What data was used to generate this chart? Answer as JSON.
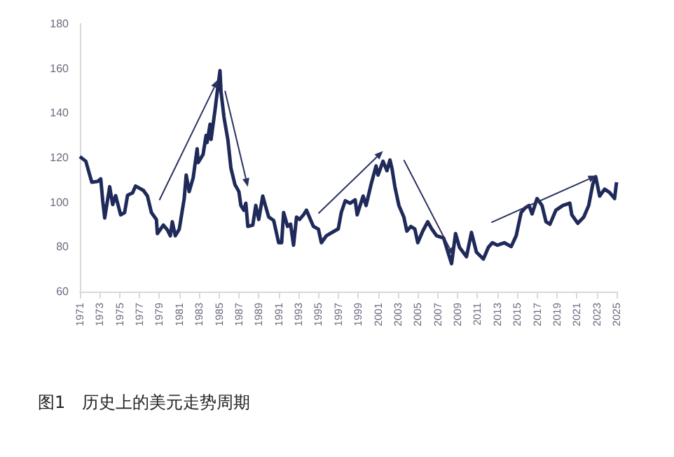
{
  "chart_data": {
    "type": "line",
    "title": "图1　历史上的美元走势周期",
    "x": [
      1971.0,
      1971.6,
      1972.2,
      1972.8,
      1973.1,
      1973.3,
      1973.5,
      1974.0,
      1974.3,
      1974.6,
      1975.1,
      1975.5,
      1975.8,
      1976.3,
      1976.6,
      1977.4,
      1977.8,
      1978.2,
      1978.7,
      1978.8,
      1979.4,
      1979.8,
      1980.1,
      1980.3,
      1980.6,
      1981.0,
      1981.5,
      1981.7,
      1982.0,
      1982.4,
      1982.8,
      1982.9,
      1983.4,
      1983.7,
      1983.8,
      1984.1,
      1984.2,
      1984.6,
      1984.8,
      1985.1,
      1985.2,
      1985.5,
      1985.9,
      1986.2,
      1986.6,
      1987.0,
      1987.2,
      1987.5,
      1987.7,
      1987.9,
      1988.4,
      1988.7,
      1989.0,
      1989.4,
      1989.6,
      1990.0,
      1990.5,
      1991.0,
      1991.3,
      1991.5,
      1991.9,
      1992.2,
      1992.5,
      1992.8,
      1993.1,
      1993.5,
      1993.8,
      1994.2,
      1994.5,
      1995.0,
      1995.3,
      1995.8,
      1996.6,
      1997.0,
      1997.3,
      1997.7,
      1998.2,
      1998.7,
      1998.9,
      1999.5,
      1999.8,
      2000.3,
      2000.8,
      2001.0,
      2001.5,
      2001.9,
      2002.2,
      2002.4,
      2002.7,
      2003.1,
      2003.6,
      2003.9,
      2004.3,
      2004.7,
      2005.0,
      2005.5,
      2006.0,
      2006.4,
      2006.9,
      2007.6,
      2008.1,
      2008.4,
      2008.8,
      2009.2,
      2009.9,
      2010.4,
      2010.9,
      2011.6,
      2012.1,
      2012.5,
      2013.0,
      2013.7,
      2014.4,
      2014.9,
      2015.4,
      2015.8,
      2016.2,
      2016.5,
      2017.0,
      2017.5,
      2017.9,
      2018.3,
      2018.9,
      2019.6,
      2020.3,
      2020.5,
      2021.1,
      2021.7,
      2022.2,
      2022.6,
      2022.9,
      2023.3,
      2023.8,
      2024.3,
      2024.8,
      2025.0
    ],
    "series": [
      {
        "color": "#1f2a5a",
        "values": [
          120.5,
          118.4,
          109,
          109.4,
          110.5,
          100.7,
          93,
          107,
          99,
          103,
          94.4,
          95.4,
          103.2,
          104.2,
          107.3,
          105.3,
          102.8,
          95.4,
          92.3,
          86,
          89.8,
          87.7,
          85,
          91.3,
          85,
          88,
          101.7,
          112.2,
          104.8,
          111,
          124,
          117.8,
          121.5,
          130,
          126.8,
          135,
          128.2,
          141.4,
          148.7,
          159,
          149.7,
          138.2,
          127.8,
          115.3,
          108,
          104.8,
          98.6,
          96.5,
          99.6,
          89.2,
          89.8,
          98.6,
          92.3,
          102.8,
          99.6,
          93.4,
          91.9,
          81.9,
          81.9,
          95.4,
          89.2,
          90.2,
          80.8,
          93.4,
          92.3,
          94.4,
          96.5,
          92.3,
          89.2,
          88,
          81.9,
          85,
          87.1,
          88.1,
          95.4,
          100.7,
          99.6,
          101.1,
          94.4,
          102.8,
          98.6,
          108,
          116.3,
          112.2,
          118.4,
          114.2,
          119,
          115.3,
          106.9,
          98.6,
          93.4,
          87.1,
          89.2,
          88.1,
          81.9,
          87.1,
          91.3,
          88.1,
          85,
          84,
          76.7,
          72.5,
          86,
          79.8,
          75.6,
          86.5,
          77.7,
          74.6,
          79.8,
          81.9,
          80.8,
          81.9,
          80.2,
          85,
          95.4,
          97.5,
          98.6,
          94.8,
          101.7,
          98.6,
          91.3,
          90.2,
          96.5,
          98.6,
          99.6,
          94.4,
          90.6,
          93.4,
          98.6,
          108,
          111.5,
          102.8,
          105.9,
          104.4,
          101.7,
          109
        ]
      }
    ],
    "xlim": [
      1971,
      2025
    ],
    "xticks": [
      1971,
      1973,
      1975,
      1977,
      1979,
      1981,
      1983,
      1985,
      1987,
      1989,
      1991,
      1993,
      1995,
      1997,
      1999,
      2001,
      2003,
      2005,
      2007,
      2009,
      2011,
      2013,
      2015,
      2017,
      2019,
      2021,
      2023,
      2025
    ],
    "ylim": [
      60,
      180
    ],
    "yticks": [
      60,
      80,
      100,
      120,
      140,
      160,
      180
    ],
    "grid": false,
    "marker": "none",
    "line_style": "solid"
  }
}
